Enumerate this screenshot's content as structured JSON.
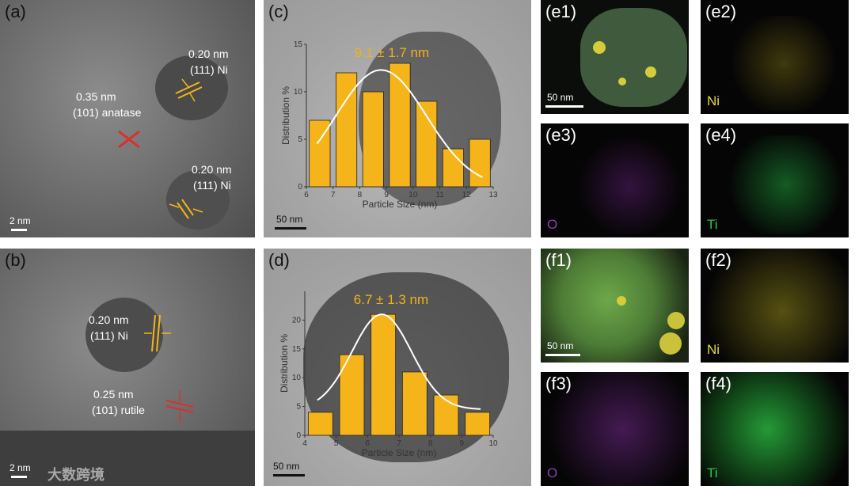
{
  "panels": {
    "a": {
      "label": "(a)",
      "ni_top_spacing": "0.20 nm",
      "ni_top_plane": "(111) Ni",
      "anatase_spacing": "0.35 nm",
      "anatase_plane": "(101) anatase",
      "ni_bottom_spacing": "0.20 nm",
      "ni_bottom_plane": "(111) Ni",
      "scale": "2 nm"
    },
    "b": {
      "label": "(b)",
      "ni_spacing": "0.20 nm",
      "ni_plane": "(111) Ni",
      "rutile_spacing": "0.25 nm",
      "rutile_plane": "(101) rutile",
      "scale": "2 nm"
    },
    "c": {
      "label": "(c)",
      "scale": "50 nm"
    },
    "d": {
      "label": "(d)",
      "scale": "50 nm"
    },
    "e1": {
      "label": "(e1)",
      "scale": "50 nm"
    },
    "e2": {
      "label": "(e2)",
      "element": "Ni"
    },
    "e3": {
      "label": "(e3)",
      "element": "O"
    },
    "e4": {
      "label": "(e4)",
      "element": "Ti"
    },
    "f1": {
      "label": "(f1)",
      "scale": "50 nm"
    },
    "f2": {
      "label": "(f2)",
      "element": "Ni"
    },
    "f3": {
      "label": "(f3)",
      "element": "O"
    },
    "f4": {
      "label": "(f4)",
      "element": "Ti"
    }
  },
  "colors": {
    "ni": "#e6d83a",
    "o": "#8a3fb0",
    "ti": "#2ec44a",
    "bar": "#f5b41a",
    "lattice": "#f5b41a",
    "cross": "#d93030"
  },
  "watermark": "大数跨境",
  "chart_data": [
    {
      "type": "bar",
      "panel": "c",
      "categories": [
        6.5,
        7.5,
        8.5,
        9.5,
        10.5,
        11.5,
        12.5
      ],
      "values": [
        7,
        12,
        10,
        13,
        9,
        4,
        5
      ],
      "distribution": "9.1 ± 1.7 nm",
      "fit": {
        "mean": 8.8,
        "sigma": 1.7,
        "peak": 12.3
      },
      "xlabel": "Particle Size (nm)",
      "ylabel": "Distribution %",
      "xlim": [
        6,
        13
      ],
      "ylim": [
        0,
        15
      ],
      "xticks": [
        6,
        7,
        8,
        9,
        10,
        11,
        12,
        13
      ],
      "yticks": [
        0,
        5,
        10,
        15
      ]
    },
    {
      "type": "bar",
      "panel": "d",
      "categories": [
        4.5,
        5.5,
        6.5,
        7.5,
        8.5,
        9.5
      ],
      "values": [
        4,
        14,
        21,
        11,
        7,
        4
      ],
      "distribution": "6.7 ± 1.3 nm",
      "fit": {
        "mean": 6.45,
        "sigma": 0.95,
        "peak": 21,
        "baseline": 4.5
      },
      "xlabel": "Particle Size (nm)",
      "ylabel": "Distribution %",
      "xlim": [
        4,
        10
      ],
      "ylim": [
        0,
        25
      ],
      "xticks": [
        4,
        5,
        6,
        7,
        8,
        9,
        10
      ],
      "yticks": [
        0,
        5,
        10,
        15,
        20
      ]
    }
  ]
}
